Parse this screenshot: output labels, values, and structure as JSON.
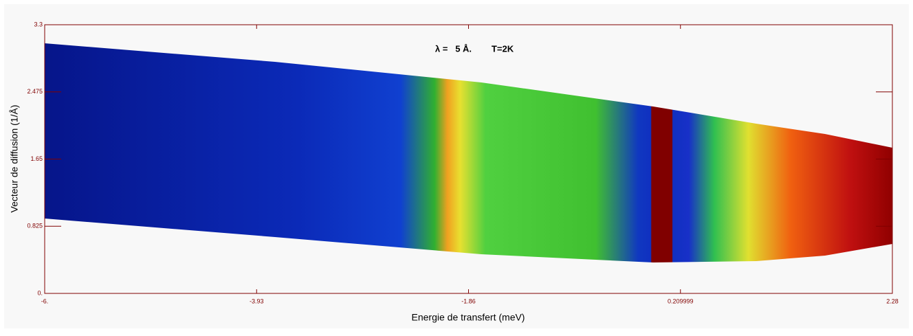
{
  "chart_data": {
    "type": "heatmap",
    "annotation": "λ =   5 Å.        T=2K",
    "xlabel": "Energie de transfert (meV)",
    "ylabel": "Vecteur de diffusion (1/Å)",
    "xlim": [
      -6,
      2.28
    ],
    "ylim": [
      0,
      3.3
    ],
    "xticks": [
      {
        "value": -6,
        "label": "-6."
      },
      -3.93,
      -1.86,
      0.209999,
      2.28
    ],
    "yticks": [
      {
        "value": 0,
        "label": "0."
      },
      0.825,
      1.65,
      2.475,
      3.3
    ],
    "axis_color": "#800000"
  }
}
